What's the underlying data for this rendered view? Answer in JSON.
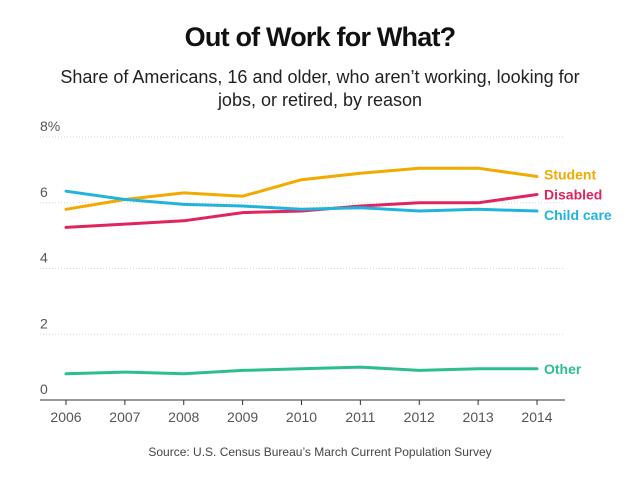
{
  "chart_data": {
    "type": "line",
    "title": "Out of Work for What?",
    "subtitle": "Share of Americans, 16 and older, who aren’t working, looking for jobs, or retired, by reason",
    "source": "Source: U.S. Census Bureau’s March Current Population Survey",
    "x": [
      "2006",
      "2007",
      "2008",
      "2009",
      "2010",
      "2011",
      "2012",
      "2013",
      "2014"
    ],
    "ylim": [
      0,
      8
    ],
    "yticks": [
      {
        "value": 0,
        "label": "0"
      },
      {
        "value": 2,
        "label": "2"
      },
      {
        "value": 4,
        "label": "4"
      },
      {
        "value": 6,
        "label": "6"
      },
      {
        "value": 8,
        "label": "8%"
      }
    ],
    "grid": true,
    "legend": "direct labels at right end of lines",
    "series": [
      {
        "name": "Student",
        "color": "#f2a900",
        "values": [
          5.8,
          6.1,
          6.3,
          6.2,
          6.7,
          6.9,
          7.05,
          7.05,
          6.8
        ]
      },
      {
        "name": "Disabled",
        "color": "#e0255e",
        "values": [
          5.25,
          5.35,
          5.45,
          5.7,
          5.75,
          5.9,
          6.0,
          6.0,
          6.25
        ]
      },
      {
        "name": "Child care",
        "color": "#20b4dc",
        "values": [
          6.35,
          6.1,
          5.95,
          5.9,
          5.8,
          5.85,
          5.75,
          5.8,
          5.75
        ]
      },
      {
        "name": "Other",
        "color": "#2dbf8a",
        "values": [
          0.8,
          0.85,
          0.8,
          0.9,
          0.95,
          1.0,
          0.9,
          0.95,
          0.95
        ]
      }
    ]
  }
}
